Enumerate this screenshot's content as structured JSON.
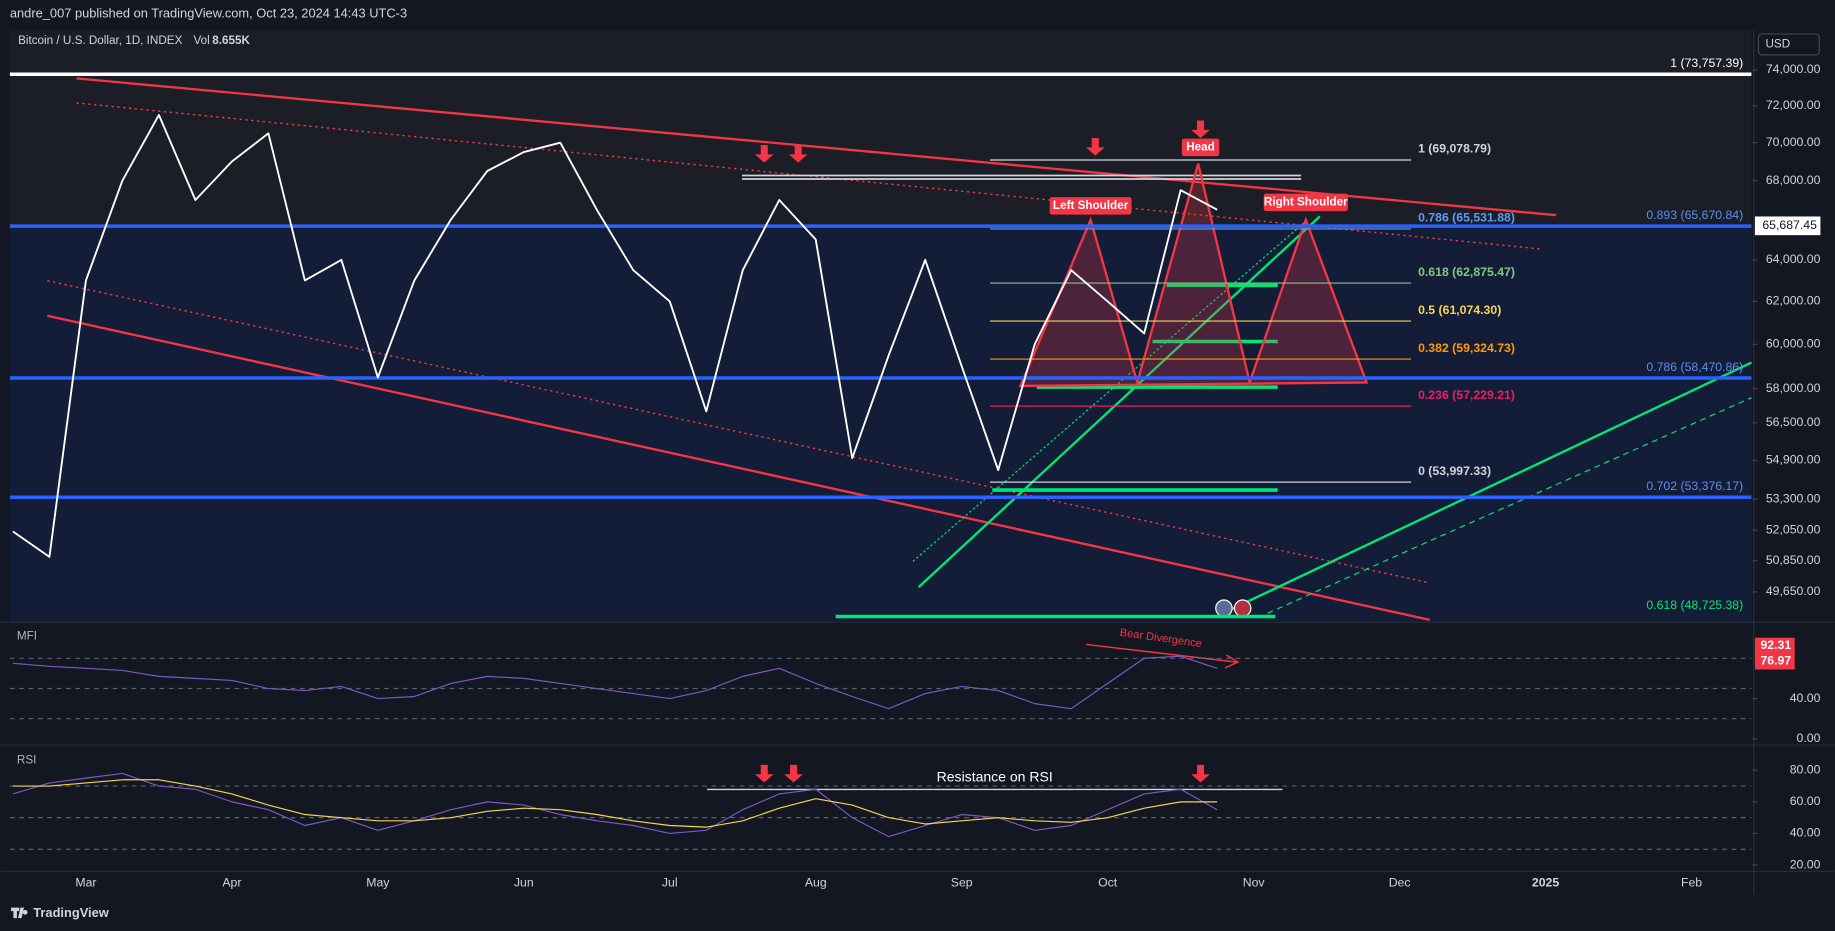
{
  "header": {
    "publisher": "andre_007 published on TradingView.com, Oct 23, 2024 14:43 UTC-3",
    "symbol": "Bitcoin / U.S. Dollar, 1D, INDEX",
    "volume_label": "Vol",
    "volume": "8.655K",
    "currency": "USD"
  },
  "footer": {
    "brand": "TradingView"
  },
  "chart_data": [
    {
      "type": "line",
      "log": true,
      "grid": false,
      "color": "#ffffff",
      "categories": [
        null,
        null,
        "Mar",
        null,
        null,
        null,
        "Apr",
        null,
        null,
        null,
        "May",
        null,
        null,
        null,
        "Jun",
        null,
        null,
        null,
        "Jul",
        null,
        null,
        null,
        "Aug",
        null,
        null,
        null,
        "Sep",
        null,
        null,
        null,
        "Oct",
        null,
        null,
        null,
        "Nov",
        null,
        null,
        null,
        "Dec",
        null,
        null,
        null,
        "2025",
        null,
        null,
        null,
        "Feb"
      ],
      "values": [
        52000,
        51000,
        63000,
        68000,
        71500,
        67000,
        69000,
        70500,
        63000,
        64000,
        58500,
        63000,
        66000,
        68500,
        69500,
        70000,
        66500,
        63500,
        62000,
        57000,
        63500,
        67000,
        65000,
        55000,
        59500,
        64000,
        59000,
        54500,
        60000,
        63500,
        62000,
        60500,
        67500,
        66500,
        null,
        null,
        null,
        null,
        null,
        null,
        null,
        null,
        null,
        null,
        null,
        null,
        null
      ],
      "ylim": [
        48600,
        74520
      ],
      "yticks": [
        {
          "value": 74000,
          "label": "74,000.00"
        },
        {
          "value": 72000,
          "label": "72,000.00"
        },
        {
          "value": 70000,
          "label": "70,000.00"
        },
        {
          "value": 68000,
          "label": "68,000.00"
        },
        {
          "value": 64000,
          "label": "64,000.00"
        },
        {
          "value": 62000,
          "label": "62,000.00"
        },
        {
          "value": 60000,
          "label": "60,000.00"
        },
        {
          "value": 58000,
          "label": "58,000.00"
        },
        {
          "value": 56500,
          "label": "56,500.00"
        },
        {
          "value": 54900,
          "label": "54,900.00"
        },
        {
          "value": 53300,
          "label": "53,300.00"
        },
        {
          "value": 52050,
          "label": "52,050.00"
        },
        {
          "value": 50850,
          "label": "50,850.00"
        },
        {
          "value": 49650,
          "label": "49,650.00"
        }
      ],
      "last_price": {
        "value": 65687.45,
        "label": "65,687.45"
      },
      "fib_levels": [
        {
          "value": 69078.79,
          "label": "1 (69,078.79)",
          "color": "#d1d4dc"
        },
        {
          "value": 65531.88,
          "label": "0.786 (65,531.88)",
          "color": "#5b9cf6"
        },
        {
          "value": 62875.47,
          "label": "0.618 (62,875.47)",
          "color": "#81c784"
        },
        {
          "value": 61074.3,
          "label": "0.5 (61,074.30)",
          "color": "#f7d44c"
        },
        {
          "value": 59324.73,
          "label": "0.382 (59,324.73)",
          "color": "#ff9800"
        },
        {
          "value": 57229.21,
          "label": "0.236 (57,229.21)",
          "color": "#e91e63"
        },
        {
          "value": 53997.33,
          "label": "0 (53,997.33)",
          "color": "#d1d4dc"
        }
      ],
      "levels": [
        {
          "value": 73757.39,
          "label": "1 (73,757.39)",
          "color": "#ffffff"
        },
        {
          "value": 65670.84,
          "label": "0.893 (65,670.84)",
          "color": "#2962ff"
        },
        {
          "value": 58470.86,
          "label": "0.786 (58,470.86)",
          "color": "#2962ff"
        },
        {
          "value": 53376.17,
          "label": "0.702 (53,376.17)",
          "color": "#2962ff"
        },
        {
          "value": 48725.38,
          "label": "0.618 (48,725.38)",
          "color": "#00e676"
        }
      ],
      "annotations": [
        "Left Shoulder",
        "Head",
        "Right Shoulder"
      ]
    },
    {
      "type": "line",
      "title": "MFI",
      "color": "#7e57c2",
      "values": [
        75,
        72,
        70,
        68,
        62,
        60,
        58,
        50,
        48,
        52,
        40,
        42,
        55,
        62,
        60,
        55,
        50,
        45,
        40,
        48,
        62,
        70,
        55,
        42,
        30,
        45,
        52,
        48,
        35,
        30,
        55,
        80,
        82,
        70,
        null,
        null,
        null,
        null,
        null,
        null,
        null,
        null,
        null,
        null,
        null,
        null,
        null
      ],
      "ylim": [
        -5,
        110
      ],
      "yticks": [
        {
          "value": 40,
          "label": "40.00"
        },
        {
          "value": 0,
          "label": "0.00"
        }
      ],
      "bands": [
        80,
        50,
        20
      ],
      "value_markers": [
        {
          "value": 92.31,
          "label": "92.31"
        },
        {
          "value": 76.97,
          "label": "76.97"
        }
      ],
      "annotation": "Bear Divergence"
    },
    {
      "type": "line",
      "title": "RSI",
      "series": [
        {
          "color": "#7e57c2",
          "values": [
            65,
            72,
            75,
            78,
            70,
            68,
            60,
            55,
            45,
            50,
            42,
            48,
            55,
            60,
            58,
            52,
            48,
            45,
            40,
            42,
            55,
            65,
            68,
            50,
            38,
            45,
            52,
            50,
            42,
            45,
            55,
            65,
            68,
            55,
            null,
            null,
            null,
            null,
            null,
            null,
            null,
            null,
            null,
            null,
            null,
            null,
            null
          ]
        },
        {
          "color": "#f7d44c",
          "values": [
            70,
            70,
            72,
            74,
            74,
            70,
            65,
            58,
            52,
            50,
            48,
            48,
            50,
            54,
            56,
            55,
            52,
            48,
            45,
            44,
            48,
            56,
            62,
            58,
            50,
            46,
            48,
            50,
            48,
            47,
            50,
            56,
            60,
            60,
            null,
            null,
            null,
            null,
            null,
            null,
            null,
            null,
            null,
            null,
            null,
            null,
            null
          ]
        }
      ],
      "ylim": [
        16,
        93
      ],
      "yticks": [
        {
          "value": 80,
          "label": "80.00"
        },
        {
          "value": 60,
          "label": "60.00"
        },
        {
          "value": 40,
          "label": "40.00"
        },
        {
          "value": 20,
          "label": "20.00"
        }
      ],
      "bands": [
        70,
        50,
        30
      ],
      "annotation": "Resistance on RSI"
    }
  ]
}
